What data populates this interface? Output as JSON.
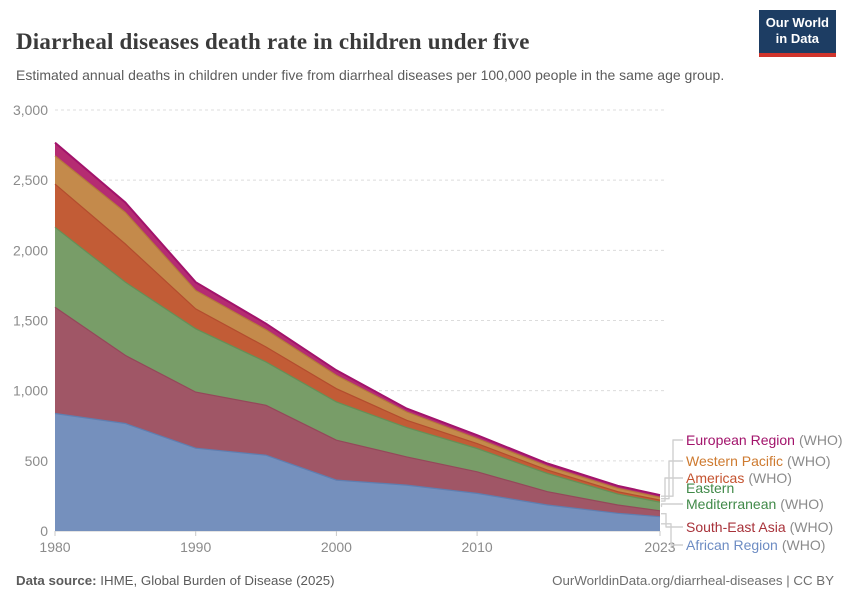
{
  "header": {
    "logo": {
      "line1": "Our World",
      "line2": "in Data"
    }
  },
  "footer": {
    "source_label": "Data source:",
    "source_text": "IHME, Global Burden of Disease (2025)",
    "right_text": "OurWorldinData.org/diarrheal-diseases | CC BY"
  },
  "chart_data": {
    "type": "area",
    "stacked": true,
    "title": "Diarrheal diseases death rate in children under five",
    "subtitle": "Estimated annual deaths in children under five from diarrheal diseases per 100,000 people in the same age group.",
    "xlabel": "",
    "ylabel": "",
    "x": [
      1980,
      1985,
      1990,
      1995,
      2000,
      2005,
      2010,
      2015,
      2020,
      2023
    ],
    "xlim": [
      1980,
      2023
    ],
    "ylim": [
      0,
      3000
    ],
    "grid": "horizontal-dashed",
    "legend_position": "right",
    "series_note": "values stacked bottom-to-top in listed order; units = deaths per 100,000 children under five",
    "series": [
      {
        "name": "African Region",
        "name_lines": [
          "African Region"
        ],
        "suffix": "(WHO)",
        "fill": "#7590bd",
        "stroke": "#5f7eb0",
        "label_color": "#6d8cc3",
        "values": [
          837,
          766,
          590,
          540,
          363,
          327,
          268,
          185,
          126,
          102
        ]
      },
      {
        "name": "South-East Asia",
        "name_lines": [
          "South-East Asia"
        ],
        "suffix": "(WHO)",
        "fill": "#a05666",
        "stroke": "#94485a",
        "label_color": "#a8323a",
        "values": [
          758,
          485,
          400,
          356,
          284,
          201,
          154,
          95,
          59,
          42
        ]
      },
      {
        "name": "Eastern Mediterranean",
        "name_lines": [
          "Eastern",
          "Mediterranean"
        ],
        "suffix": "(WHO)",
        "fill": "#789d68",
        "stroke": "#659057",
        "label_color": "#418a49",
        "values": [
          569,
          522,
          451,
          308,
          272,
          209,
          166,
          130,
          78,
          62
        ]
      },
      {
        "name": "Americas",
        "name_lines": [
          "Americas"
        ],
        "suffix": "(WHO)",
        "fill": "#c25c36",
        "stroke": "#b34d2e",
        "label_color": "#c4532f",
        "values": [
          308,
          272,
          142,
          107,
          95,
          52,
          35,
          24,
          17,
          14
        ]
      },
      {
        "name": "Western Pacific",
        "name_lines": [
          "Western Pacific"
        ],
        "suffix": "(WHO)",
        "fill": "#c48a4b",
        "stroke": "#b67a3c",
        "label_color": "#ce7a2f",
        "values": [
          201,
          225,
          131,
          123,
          95,
          59,
          36,
          28,
          24,
          20
        ]
      },
      {
        "name": "European Region",
        "name_lines": [
          "European Region"
        ],
        "suffix": "(WHO)",
        "fill": "#b52c72",
        "stroke": "#a2136b",
        "label_color": "#a2136b",
        "values": [
          95,
          71,
          59,
          43,
          36,
          24,
          24,
          19,
          18,
          16
        ]
      }
    ],
    "y_ticks": {
      "values": [
        0,
        500,
        1000,
        1500,
        2000,
        2500,
        3000
      ],
      "labels": [
        "0",
        "500",
        "1,000",
        "1,500",
        "2,000",
        "2,500",
        "3,000"
      ]
    },
    "x_ticks": {
      "values": [
        1980,
        1990,
        2000,
        2010,
        2023
      ],
      "labels": [
        "1980",
        "1990",
        "2000",
        "2010",
        "2023"
      ]
    },
    "style": {
      "grid_color": "#dcdcdc",
      "axis_color": "#c8c8c8",
      "tick_text_color": "#8b8b8b",
      "connector_color": "#cfcfcf"
    }
  }
}
